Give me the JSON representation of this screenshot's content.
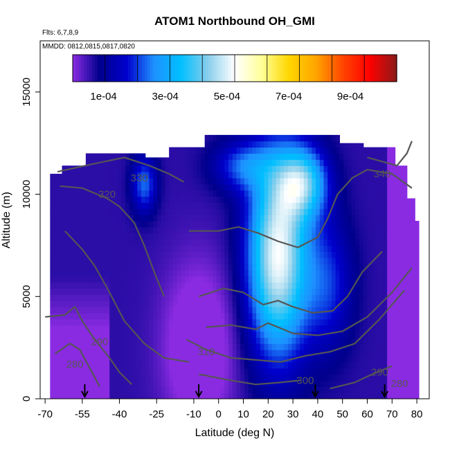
{
  "header": {
    "title": "ATOM1 Northbound OH_GMI",
    "flights_note": "Flts: 6,7,8,9",
    "dates_note": "MMDD: 0812,0815,0817,0820"
  },
  "chart_data": {
    "type": "heatmap",
    "title": "ATOM1 Northbound OH_GMI",
    "xlabel": "Latitude (deg N)",
    "ylabel": "Altitude (m)",
    "xlim": [
      -72,
      85
    ],
    "ylim": [
      0,
      17500
    ],
    "x_ticks": [
      -70,
      -55,
      -40,
      -25,
      -10,
      0,
      10,
      20,
      30,
      40,
      50,
      60,
      70,
      80
    ],
    "x_tick_labels": [
      "-70",
      "-55",
      "-40",
      "-25",
      "-10",
      "0",
      "10",
      "20",
      "30",
      "40",
      "50",
      "60",
      "70",
      "80"
    ],
    "y_ticks": [
      0,
      5000,
      10000,
      15000
    ],
    "y_tick_labels": [
      "0",
      "5000",
      "10000",
      "15000"
    ],
    "grid": false,
    "colorbar": {
      "min": 0,
      "max": 0.00105,
      "ticks": [
        0.0001,
        0.0003,
        0.0005,
        0.0007,
        0.0009
      ],
      "tick_labels": [
        "1e-04",
        "3e-04",
        "5e-04",
        "7e-04",
        "9e-04"
      ],
      "colors": [
        "#8a2be2",
        "#00008b",
        "#0000cd",
        "#1e90ff",
        "#00bfff",
        "#87ceeb",
        "#ffffff",
        "#ffff99",
        "#ffd700",
        "#ffa500",
        "#ff4500",
        "#ff0000",
        "#8b1a1a"
      ]
    },
    "contour_color": "#555555",
    "contour_labels": [
      {
        "text": "330",
        "lat": -32,
        "alt": 10800
      },
      {
        "text": "320",
        "lat": -45,
        "alt": 10000
      },
      {
        "text": "340",
        "lat": 66,
        "alt": 11000
      },
      {
        "text": "310",
        "lat": -5,
        "alt": 2300
      },
      {
        "text": "300",
        "lat": 35,
        "alt": 900
      },
      {
        "text": "290",
        "lat": -48,
        "alt": 2800
      },
      {
        "text": "280",
        "lat": -58,
        "alt": 1700
      },
      {
        "text": "290",
        "lat": 65,
        "alt": 1300
      },
      {
        "text": "280",
        "lat": 73,
        "alt": 750
      }
    ],
    "flight_markers_lat": [
      -54,
      -8,
      39,
      67
    ]
  }
}
